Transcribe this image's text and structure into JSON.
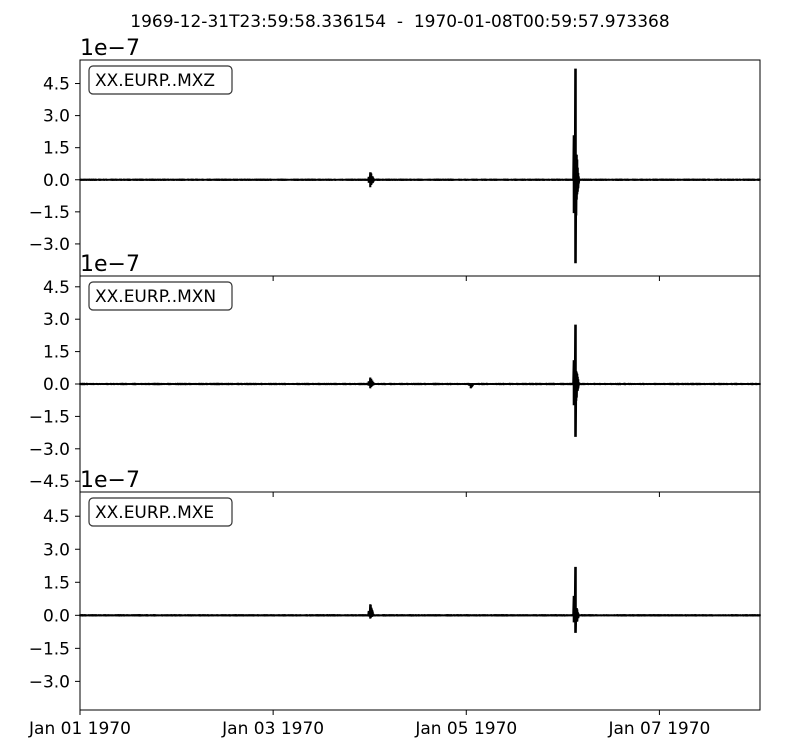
{
  "chart_data": {
    "type": "line",
    "title": "1969-12-31T23:59:58.336154  -  1970-01-08T00:59:57.973368",
    "x_range": [
      "1969-12-31T23:59:58.336154",
      "1970-01-08T00:59:57.973368"
    ],
    "x_ticks": [
      {
        "t": "1970-01-01",
        "label": "Jan 01 1970"
      },
      {
        "t": "1970-01-03",
        "label": "Jan 03 1970"
      },
      {
        "t": "1970-01-05",
        "label": "Jan 05 1970"
      },
      {
        "t": "1970-01-07",
        "label": "Jan 07 1970"
      }
    ],
    "y_scale_label": "1e−7",
    "grid": false,
    "panels": [
      {
        "name": "XX.EURP..MXZ",
        "ylim": [
          -4.5,
          5.6
        ],
        "y_ticks": [
          4.5,
          3.0,
          1.5,
          0.0,
          -1.5,
          -3.0
        ],
        "y_tick_labels": [
          "4.5",
          "3.0",
          "1.5",
          "0.0",
          "−1.5",
          "−3.0"
        ],
        "events": [
          {
            "t": "1970-01-04T00:00:00",
            "max": 0.35,
            "min": -0.35,
            "dur_h": 1.0
          },
          {
            "t": "1970-01-06T03:00:00",
            "max": 5.2,
            "min": -3.9,
            "dur_h": 0.8,
            "coda_max": 1.8,
            "coda_min": -2.0
          }
        ]
      },
      {
        "name": "XX.EURP..MXN",
        "ylim": [
          -5.0,
          5.0
        ],
        "y_ticks": [
          4.5,
          3.0,
          1.5,
          0.0,
          -1.5,
          -3.0,
          -4.5
        ],
        "y_tick_labels": [
          "4.5",
          "3.0",
          "1.5",
          "0.0",
          "−1.5",
          "−3.0",
          "−4.5"
        ],
        "events": [
          {
            "t": "1970-01-04T00:00:00",
            "max": 0.3,
            "min": -0.2,
            "dur_h": 1.0
          },
          {
            "t": "1970-01-05T01:00:00",
            "max": 0.0,
            "min": -0.2,
            "dur_h": 0.6
          },
          {
            "t": "1970-01-06T03:00:00",
            "max": 2.75,
            "min": -2.45,
            "dur_h": 0.8,
            "coda_max": 0.9,
            "coda_min": -0.9
          }
        ]
      },
      {
        "name": "XX.EURP..MXE",
        "ylim": [
          -4.3,
          5.6
        ],
        "y_ticks": [
          4.5,
          3.0,
          1.5,
          0.0,
          -1.5,
          -3.0
        ],
        "y_tick_labels": [
          "4.5",
          "3.0",
          "1.5",
          "0.0",
          "−1.5",
          "−3.0"
        ],
        "events": [
          {
            "t": "1970-01-04T00:00:00",
            "max": 0.5,
            "min": -0.15,
            "dur_h": 0.8
          },
          {
            "t": "1970-01-06T03:00:00",
            "max": 2.2,
            "min": -0.8,
            "dur_h": 0.8,
            "coda_max": 0.5,
            "coda_min": -0.5
          }
        ]
      }
    ],
    "line_color": "#000000"
  }
}
